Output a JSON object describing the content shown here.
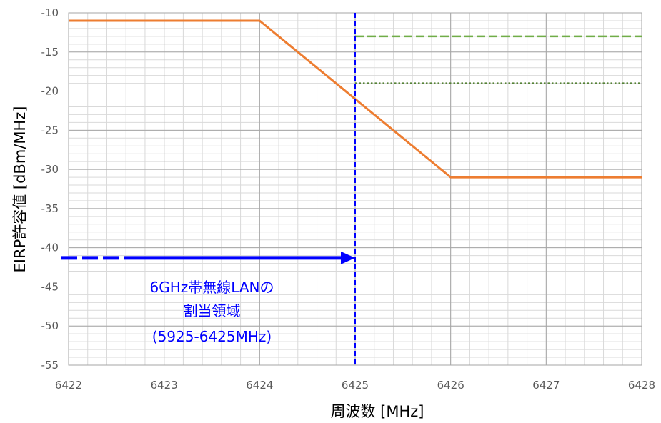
{
  "chart_data": {
    "type": "line",
    "xlabel": "周波数 [MHz]",
    "ylabel": "EIRP許容値 [dBm/MHz]",
    "xlim": [
      6422,
      6428
    ],
    "ylim": [
      -55,
      -10
    ],
    "x_ticks": [
      "6422",
      "6423",
      "6424",
      "6425",
      "6426",
      "6427",
      "6428"
    ],
    "y_ticks": [
      "-10",
      "-15",
      "-20",
      "-25",
      "-30",
      "-35",
      "-40",
      "-45",
      "-50",
      "-55"
    ],
    "grid": true,
    "series": [
      {
        "color": "#ed7d31",
        "style": "solid",
        "x": [
          6422,
          6424,
          6426,
          6428
        ],
        "y": [
          -11,
          -11,
          -31,
          -31
        ]
      },
      {
        "color": "#70ad47",
        "style": "dashed",
        "x": [
          6425,
          6428
        ],
        "y": [
          -13,
          -13
        ]
      },
      {
        "color": "#548235",
        "style": "dotted",
        "x": [
          6425,
          6428
        ],
        "y": [
          -19,
          -19
        ]
      }
    ],
    "vline": {
      "x": 6425,
      "color": "#0000ff",
      "style": "dashed"
    },
    "arrow": {
      "x_start": 6422,
      "x_end": 6425,
      "y": -41.3,
      "color": "#0000ff",
      "dashed_until": 6422.6
    },
    "annotation": {
      "lines": [
        "6GHz帯無線LANの",
        "割当領域",
        "(5925-6425MHz)"
      ],
      "color": "#0000ff",
      "x": 6423.5
    }
  }
}
